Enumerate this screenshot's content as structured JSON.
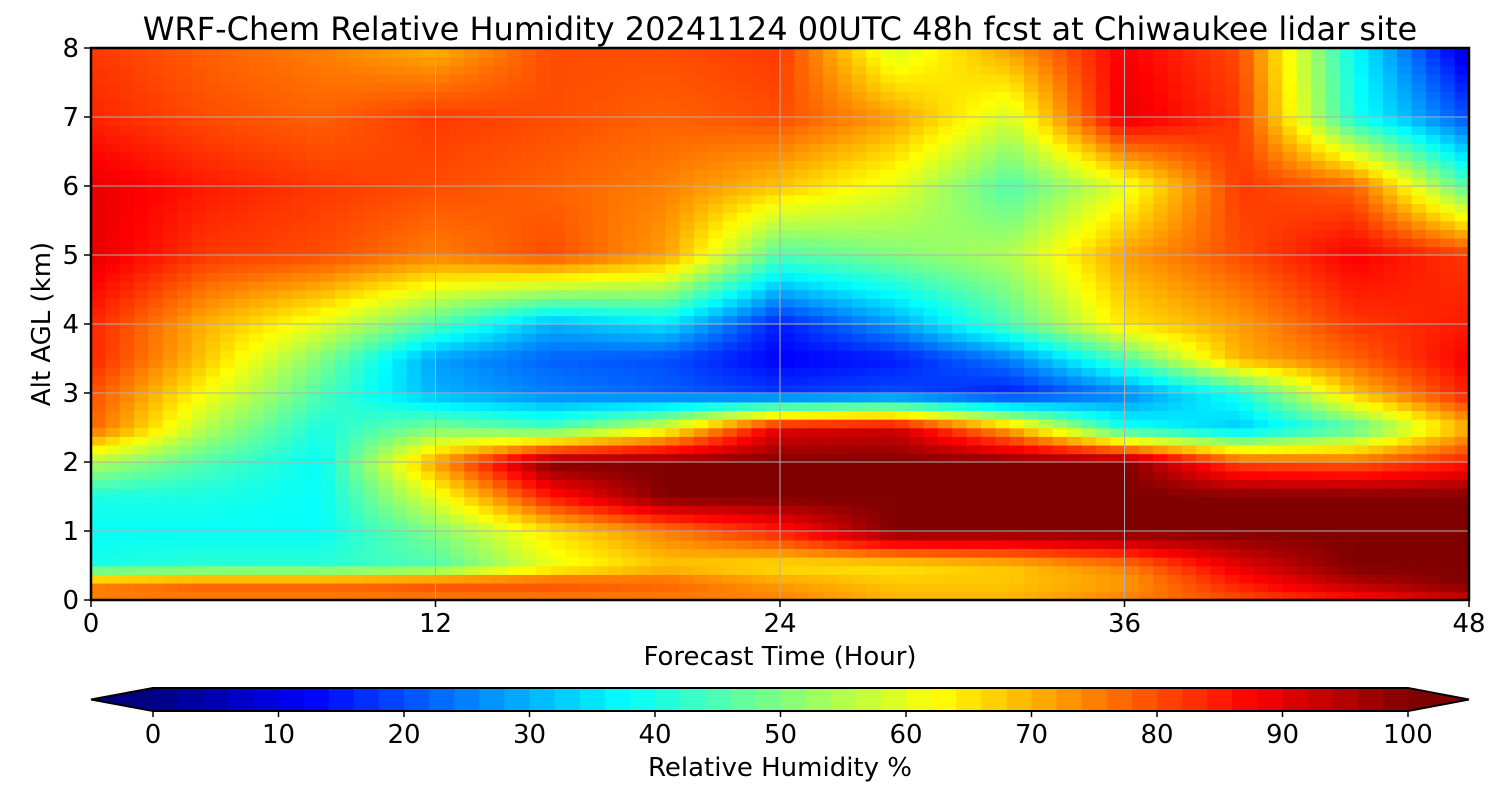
{
  "chart_data": {
    "type": "heatmap",
    "title": "WRF-Chem Relative Humidity 20241124 00UTC 48h fcst at Chiwaukee lidar site",
    "xlabel": "Forecast Time (Hour)",
    "ylabel": "Alt AGL (km)",
    "xlim": [
      0,
      48
    ],
    "ylim": [
      0,
      8
    ],
    "x_ticks": [
      "0",
      "12",
      "24",
      "36",
      "48"
    ],
    "y_ticks": [
      "0",
      "1",
      "2",
      "3",
      "4",
      "5",
      "6",
      "7",
      "8"
    ],
    "grid": true,
    "x": [
      0,
      4,
      8,
      12,
      16,
      20,
      24,
      28,
      32,
      36,
      40,
      44,
      48
    ],
    "y": [
      0,
      0.25,
      0.5,
      1,
      1.5,
      2,
      2.5,
      3,
      3.5,
      4,
      5,
      6,
      7,
      8
    ],
    "z": [
      [
        75,
        75,
        75,
        75,
        75,
        75,
        75,
        70,
        70,
        75,
        80,
        85,
        92
      ],
      [
        75,
        78,
        78,
        80,
        80,
        78,
        72,
        68,
        68,
        72,
        85,
        95,
        100
      ],
      [
        40,
        42,
        42,
        45,
        60,
        68,
        65,
        65,
        68,
        75,
        90,
        100,
        100
      ],
      [
        38,
        38,
        38,
        50,
        65,
        75,
        85,
        100,
        100,
        100,
        100,
        100,
        100
      ],
      [
        40,
        40,
        38,
        60,
        85,
        100,
        100,
        100,
        100,
        100,
        100,
        100,
        100
      ],
      [
        55,
        45,
        38,
        72,
        100,
        100,
        100,
        100,
        100,
        100,
        80,
        78,
        85
      ],
      [
        78,
        55,
        40,
        50,
        45,
        60,
        90,
        92,
        70,
        40,
        32,
        45,
        70
      ],
      [
        80,
        62,
        45,
        30,
        25,
        22,
        18,
        20,
        15,
        25,
        40,
        68,
        85
      ],
      [
        84,
        68,
        50,
        28,
        22,
        20,
        12,
        15,
        25,
        45,
        70,
        78,
        88
      ],
      [
        84,
        70,
        60,
        45,
        30,
        35,
        15,
        28,
        45,
        65,
        72,
        82,
        85
      ],
      [
        90,
        82,
        80,
        75,
        80,
        72,
        45,
        50,
        55,
        72,
        80,
        88,
        82
      ],
      [
        90,
        85,
        82,
        80,
        78,
        75,
        68,
        60,
        45,
        60,
        82,
        78,
        45
      ],
      [
        84,
        80,
        78,
        82,
        80,
        78,
        80,
        72,
        58,
        90,
        82,
        40,
        20
      ],
      [
        82,
        78,
        75,
        70,
        80,
        80,
        82,
        58,
        72,
        88,
        80,
        38,
        8
      ]
    ],
    "colorbar": {
      "label": "Relative Humidity %",
      "min": 0,
      "max": 100,
      "ticks": [
        "0",
        "10",
        "20",
        "30",
        "40",
        "50",
        "60",
        "70",
        "80",
        "90",
        "100"
      ],
      "extend": "both",
      "colormap": "jet"
    }
  }
}
